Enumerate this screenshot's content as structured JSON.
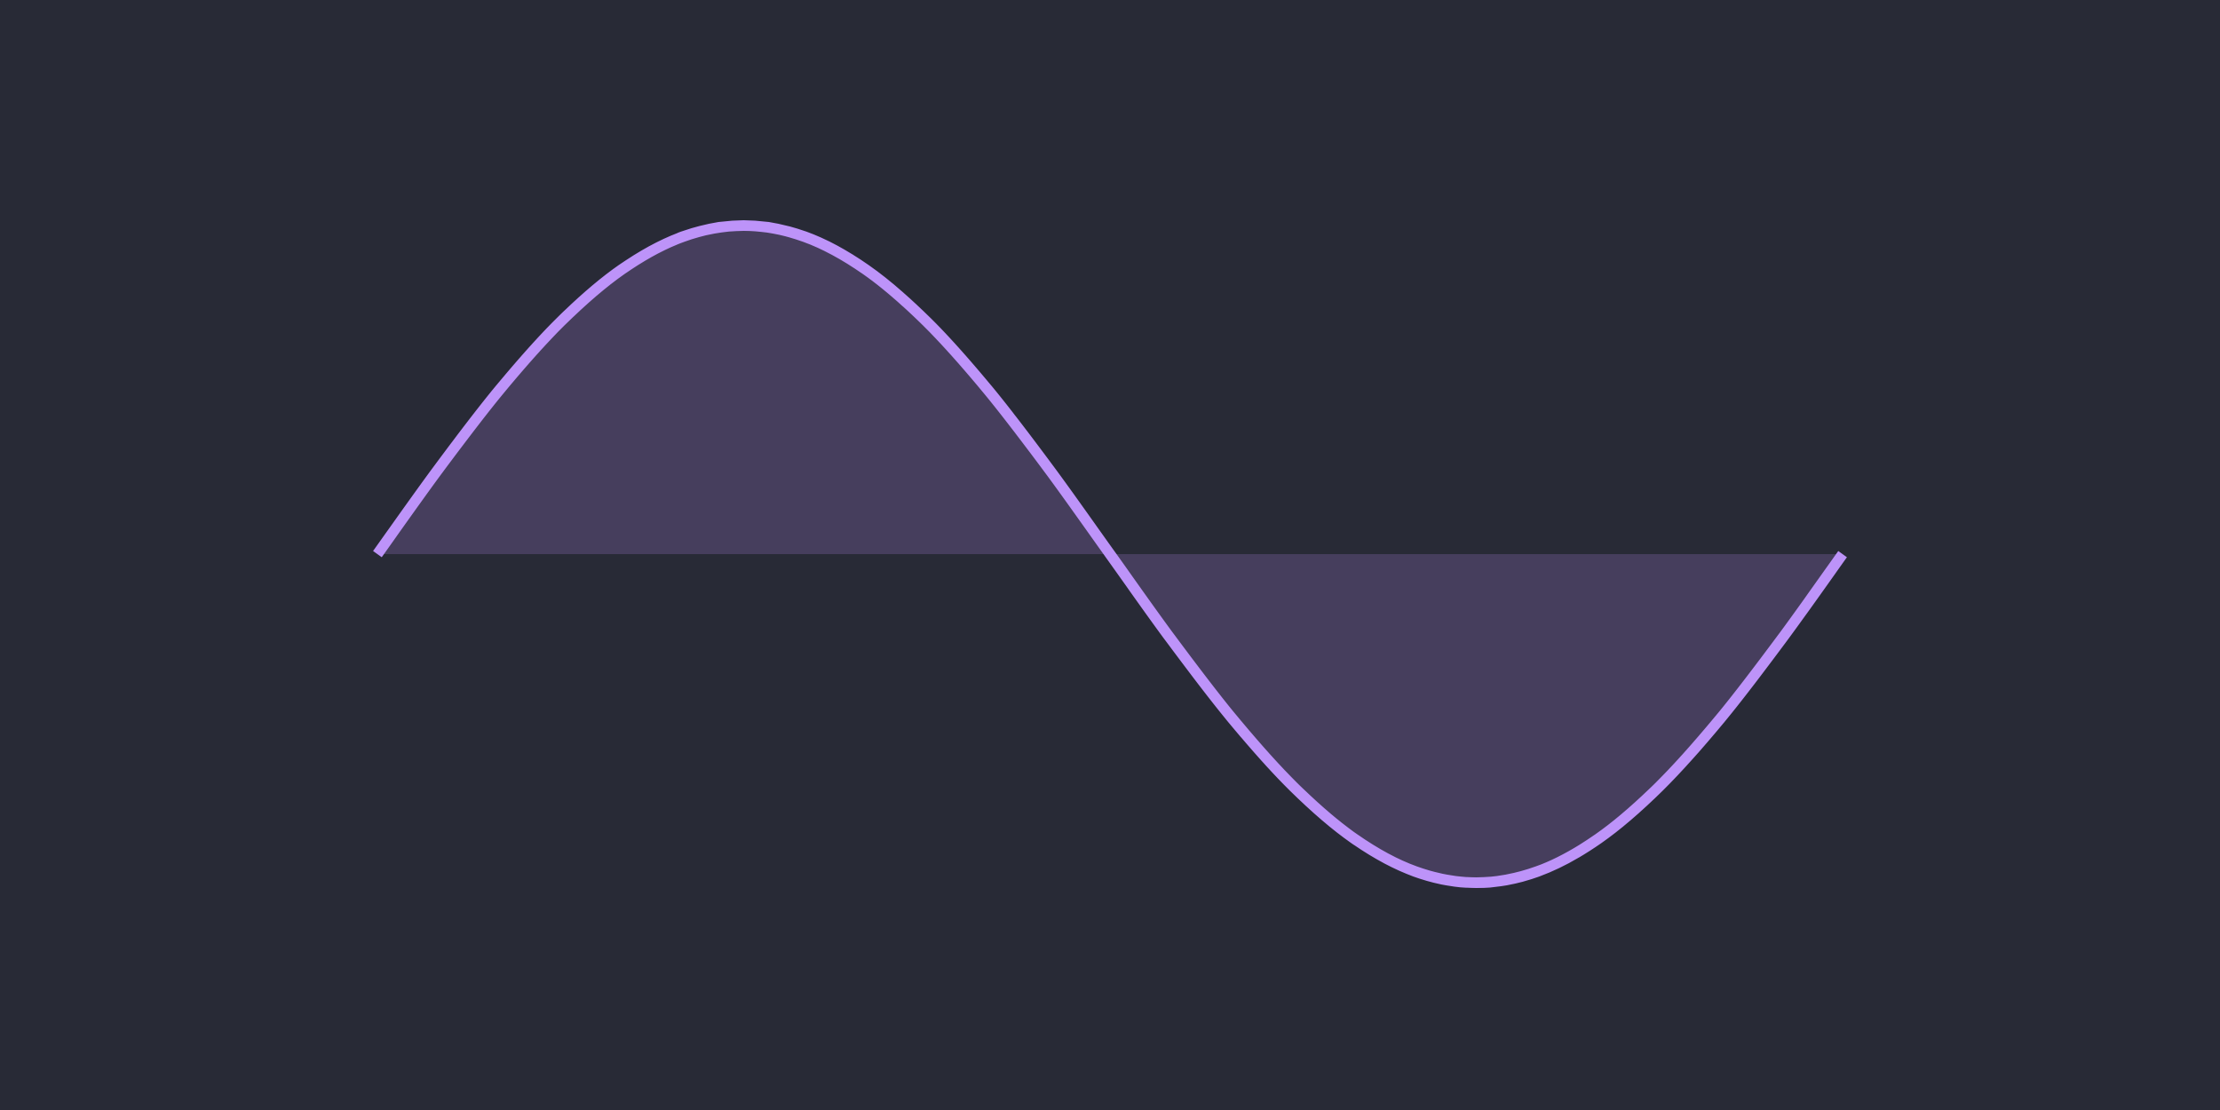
{
  "colors": {
    "background": "#282a36",
    "line": "#bd93f9",
    "fill": "#bd93f9",
    "fill_opacity": 0.2
  },
  "chart_data": {
    "type": "area",
    "title": "",
    "xlabel": "",
    "ylabel": "",
    "grid": false,
    "legend": "none",
    "fill_to": 0,
    "xlim": [
      0,
      360
    ],
    "ylim": [
      -1,
      1
    ],
    "series": [
      {
        "x": [
          0,
          15,
          30,
          45,
          60,
          75,
          90,
          105,
          120,
          135,
          150,
          165,
          180,
          195,
          210,
          225,
          240,
          255,
          270,
          285,
          300,
          315,
          330,
          345,
          360
        ],
        "values": [
          0,
          0.259,
          0.5,
          0.707,
          0.866,
          0.966,
          1,
          0.966,
          0.866,
          0.707,
          0.5,
          0.259,
          0,
          -0.259,
          -0.5,
          -0.707,
          -0.866,
          -0.966,
          -1,
          -0.966,
          -0.866,
          -0.707,
          -0.5,
          -0.259,
          0
        ]
      }
    ]
  }
}
